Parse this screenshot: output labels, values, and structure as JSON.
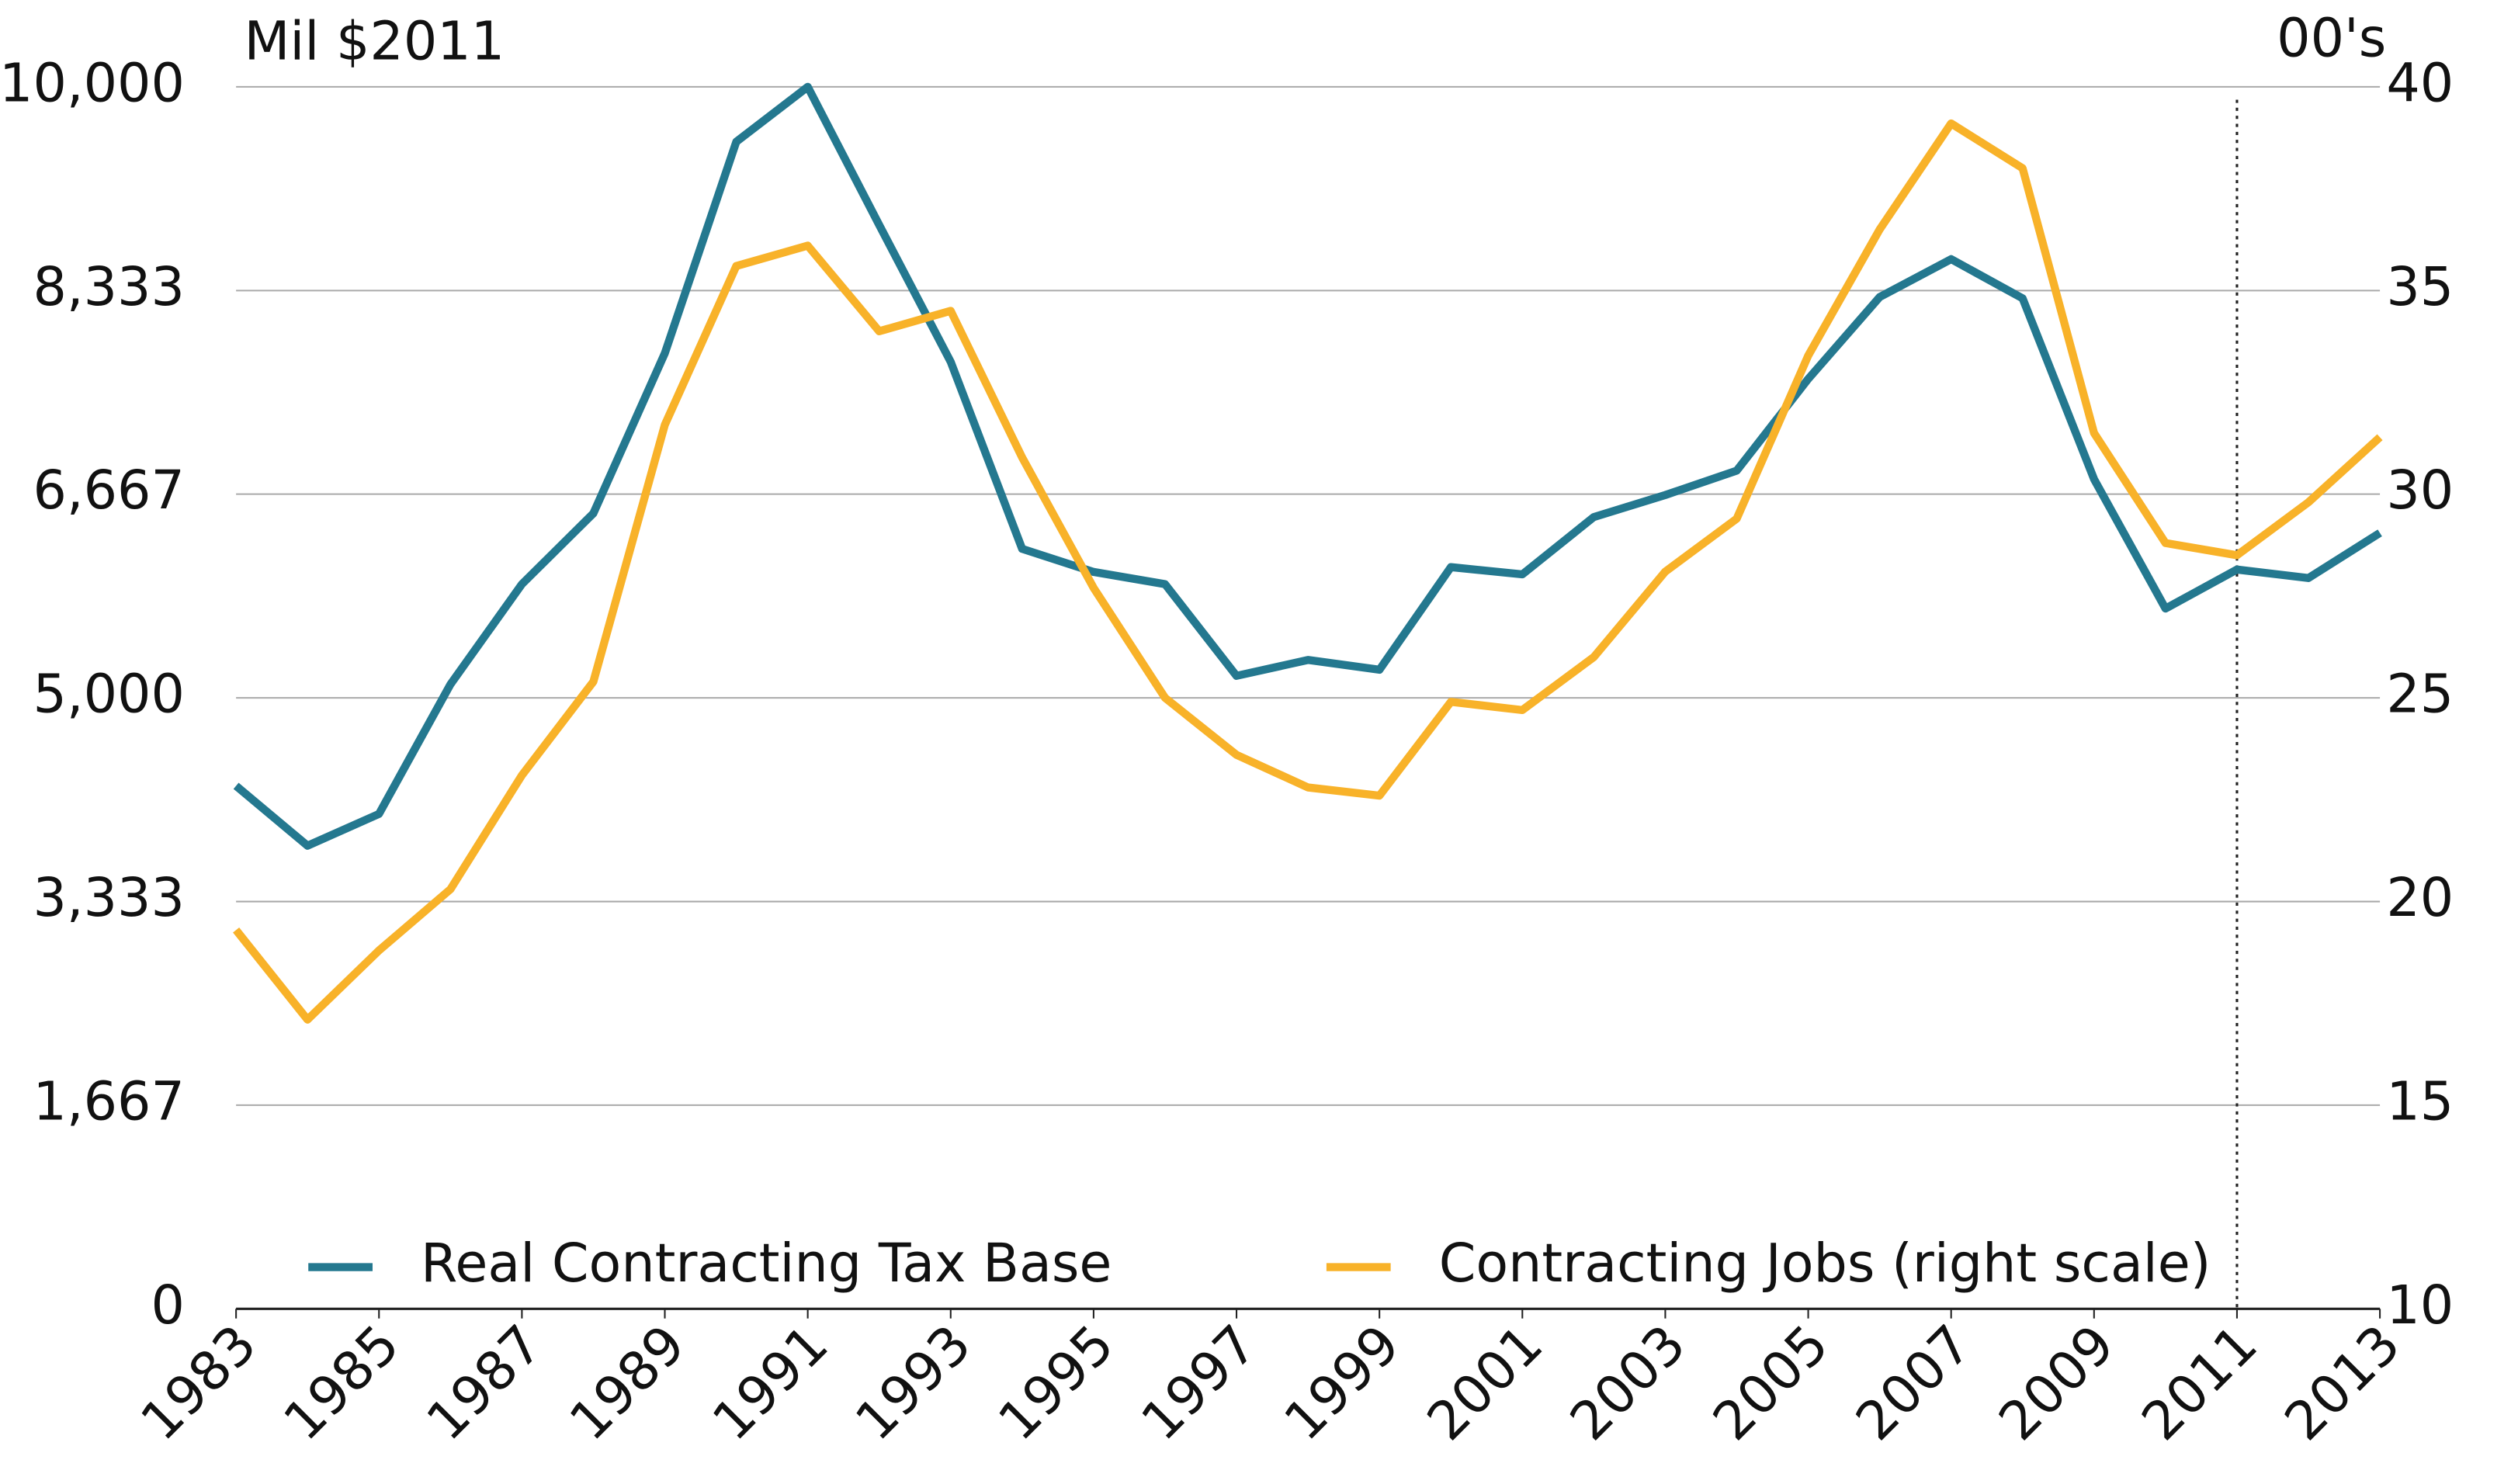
{
  "chart_data": {
    "type": "line",
    "y_label": "Mil $2011",
    "y2_label": "00's",
    "x": [
      1983,
      1984,
      1985,
      1986,
      1987,
      1988,
      1989,
      1990,
      1991,
      1992,
      1993,
      1994,
      1995,
      1996,
      1997,
      1998,
      1999,
      2000,
      2001,
      2002,
      2003,
      2004,
      2005,
      2006,
      2007,
      2008,
      2009,
      2010,
      2011,
      2012,
      2013
    ],
    "series": [
      {
        "name": "Real Contracting Tax Base",
        "color": "#24788f",
        "values": [
          4280,
          3790,
          4050,
          5110,
          5930,
          6510,
          7820,
          9550,
          10000,
          8870,
          7750,
          6220,
          6030,
          5930,
          5180,
          5310,
          5230,
          6070,
          6010,
          6480,
          6660,
          6860,
          7610,
          8280,
          8590,
          8270,
          6790,
          5730,
          6050,
          5980,
          6350
        ]
      },
      {
        "name": "Contracting Jobs (right scale)",
        "color": "#f8b229",
        "axis": "y2",
        "values": [
          19.3,
          17.1,
          18.8,
          20.3,
          23.1,
          25.4,
          31.7,
          35.6,
          36.1,
          34.0,
          34.5,
          30.9,
          27.7,
          25.0,
          23.6,
          22.8,
          22.6,
          24.9,
          24.7,
          26.0,
          28.1,
          29.4,
          33.4,
          36.5,
          39.1,
          38.0,
          31.5,
          28.8,
          28.5,
          29.8,
          31.4
        ]
      }
    ],
    "xlim": [
      1983,
      2013
    ],
    "xticks": [
      1983,
      1985,
      1987,
      1989,
      1991,
      1993,
      1995,
      1997,
      1999,
      2001,
      2003,
      2005,
      2007,
      2009,
      2011,
      2013
    ],
    "ylim": [
      0,
      10000
    ],
    "yticks": [
      0,
      {
        "value": 1667,
        "label": "1,667"
      },
      {
        "value": 3333,
        "label": "3,333"
      },
      {
        "value": 5000,
        "label": "5,000"
      },
      {
        "value": 6667,
        "label": "6,667"
      },
      {
        "value": 8333,
        "label": "8,333"
      },
      {
        "value": 10000,
        "label": "10,000"
      }
    ],
    "y2lim": [
      10,
      40
    ],
    "y2ticks": [
      10,
      15,
      20,
      25,
      30,
      35,
      40
    ],
    "vline": 2011,
    "grid": true,
    "legend": "bottom"
  }
}
